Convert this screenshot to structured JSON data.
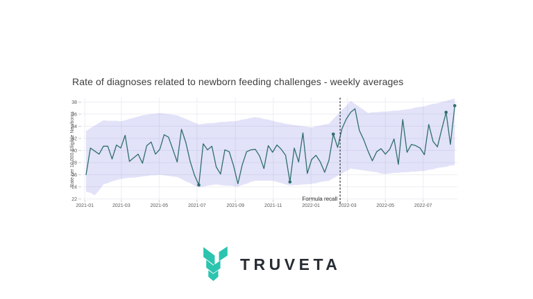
{
  "page": {
    "background_color": "#ffffff"
  },
  "chart": {
    "title": "Rate of diagnoses related to newborn feeding challenges - weekly averages",
    "y_axis_title": "Rate per 10,000 Elligible Newborns",
    "annotation_label": "Formula recall"
  },
  "chart_data": {
    "type": "line",
    "title": "Rate of diagnoses related to newborn feeding challenges - weekly averages",
    "xlabel": "",
    "ylabel": "Rate per 10,000 Elligible Newborns",
    "ylim": [
      21.7,
      38.85
    ],
    "grid": true,
    "legend": "none",
    "x_ticks": [
      "2021-01",
      "2021-03",
      "2021-05",
      "2021-07",
      "2021-09",
      "2021-11",
      "2022-01",
      "2022-03",
      "2022-05",
      "2022-07"
    ],
    "y_ticks": [
      22,
      24,
      26,
      28,
      30,
      32,
      34,
      36,
      38
    ],
    "x": [
      "2021-01-03",
      "2021-01-10",
      "2021-01-17",
      "2021-01-24",
      "2021-01-31",
      "2021-02-07",
      "2021-02-14",
      "2021-02-21",
      "2021-02-28",
      "2021-03-07",
      "2021-03-14",
      "2021-03-21",
      "2021-03-28",
      "2021-04-04",
      "2021-04-11",
      "2021-04-18",
      "2021-04-25",
      "2021-05-02",
      "2021-05-09",
      "2021-05-16",
      "2021-05-23",
      "2021-05-30",
      "2021-06-06",
      "2021-06-13",
      "2021-06-20",
      "2021-06-27",
      "2021-07-04",
      "2021-07-11",
      "2021-07-18",
      "2021-07-25",
      "2021-08-01",
      "2021-08-08",
      "2021-08-15",
      "2021-08-22",
      "2021-08-29",
      "2021-09-05",
      "2021-09-12",
      "2021-09-19",
      "2021-09-26",
      "2021-10-03",
      "2021-10-10",
      "2021-10-17",
      "2021-10-24",
      "2021-10-31",
      "2021-11-07",
      "2021-11-14",
      "2021-11-21",
      "2021-11-28",
      "2021-12-05",
      "2021-12-12",
      "2021-12-19",
      "2021-12-26",
      "2022-01-02",
      "2022-01-09",
      "2022-01-16",
      "2022-01-23",
      "2022-01-30",
      "2022-02-06",
      "2022-02-13",
      "2022-02-20",
      "2022-02-27",
      "2022-03-06",
      "2022-03-13",
      "2022-03-20",
      "2022-03-27",
      "2022-04-03",
      "2022-04-10",
      "2022-04-17",
      "2022-04-24",
      "2022-05-01",
      "2022-05-08",
      "2022-05-15",
      "2022-05-22",
      "2022-05-29",
      "2022-06-05",
      "2022-06-12",
      "2022-06-19",
      "2022-06-26",
      "2022-07-03",
      "2022-07-10",
      "2022-07-17",
      "2022-07-24",
      "2022-07-31",
      "2022-08-07",
      "2022-08-14",
      "2022-08-21"
    ],
    "series": [
      {
        "name": "Weekly average rate",
        "color": "#2e6e6c",
        "values": [
          26.0,
          30.4,
          29.9,
          29.4,
          30.7,
          30.7,
          28.6,
          30.9,
          30.4,
          32.5,
          28.2,
          28.8,
          29.4,
          27.9,
          30.8,
          31.4,
          29.4,
          30.2,
          32.6,
          32.2,
          30.2,
          28.1,
          33.5,
          31.3,
          28.2,
          25.9,
          24.3,
          31.1,
          30.1,
          30.7,
          27.3,
          26.1,
          30.1,
          29.8,
          27.5,
          24.5,
          27.6,
          29.8,
          30.1,
          30.2,
          29.1,
          27.0,
          30.8,
          29.7,
          30.9,
          30.2,
          29.2,
          24.8,
          30.4,
          28.1,
          32.9,
          26.2,
          28.5,
          29.2,
          28.1,
          26.4,
          28.4,
          32.7,
          30.5,
          33.6,
          35.2,
          36.3,
          36.9,
          33.3,
          31.8,
          29.9,
          28.3,
          29.8,
          30.3,
          29.4,
          30.2,
          31.9,
          27.7,
          35.1,
          29.7,
          31.0,
          30.8,
          30.4,
          29.3,
          34.3,
          31.5,
          30.6,
          33.5,
          36.3,
          31.0,
          37.4
        ]
      }
    ],
    "band": {
      "name": "Uncertainty band",
      "fill": "rgba(124,124,226,0.22)",
      "upper": [
        33.2,
        33.7,
        34.1,
        34.6,
        35.0,
        34.9,
        34.9,
        34.9,
        34.8,
        35.0,
        35.2,
        35.4,
        35.6,
        35.8,
        35.9,
        36.0,
        36.1,
        36.2,
        36.1,
        36.0,
        35.9,
        35.8,
        35.5,
        35.2,
        34.9,
        34.6,
        34.3,
        34.4,
        34.5,
        34.5,
        34.6,
        34.7,
        34.7,
        34.8,
        34.8,
        34.9,
        35.1,
        35.2,
        35.4,
        35.5,
        35.4,
        35.2,
        35.1,
        34.9,
        34.7,
        34.6,
        34.4,
        34.3,
        34.2,
        34.1,
        34.0,
        33.9,
        33.8,
        34.0,
        34.1,
        34.3,
        34.4,
        35.2,
        35.9,
        36.7,
        37.4,
        38.2,
        37.7,
        37.2,
        36.7,
        36.2,
        36.3,
        36.3,
        36.4,
        36.4,
        36.5,
        36.6,
        36.6,
        36.7,
        36.8,
        36.9,
        37.1,
        37.2,
        37.3,
        37.5,
        37.7,
        37.8,
        38.0,
        38.2,
        38.4,
        38.6
      ],
      "lower": [
        23.2,
        23.0,
        22.6,
        23.4,
        24.4,
        24.6,
        24.9,
        25.1,
        25.3,
        25.4,
        25.5,
        25.5,
        25.6,
        25.7,
        25.8,
        25.9,
        25.9,
        26.0,
        25.9,
        25.8,
        25.7,
        25.6,
        25.3,
        24.9,
        24.6,
        24.2,
        23.9,
        24.0,
        24.2,
        24.3,
        24.4,
        24.3,
        24.2,
        24.2,
        24.1,
        24.0,
        24.3,
        24.5,
        24.8,
        25.0,
        25.0,
        25.0,
        25.0,
        25.0,
        24.8,
        24.6,
        24.4,
        24.2,
        24.3,
        24.3,
        24.4,
        24.4,
        24.5,
        24.6,
        24.8,
        24.9,
        25.0,
        25.4,
        25.8,
        26.2,
        26.6,
        27.0,
        26.9,
        26.8,
        26.7,
        26.6,
        26.5,
        26.4,
        26.2,
        26.1,
        26.2,
        26.3,
        26.3,
        26.4,
        26.4,
        26.5,
        26.5,
        26.6,
        26.6,
        26.8,
        26.9,
        27.1,
        27.2,
        27.3,
        27.5,
        27.6
      ]
    },
    "markers": {
      "indices": [
        26,
        47,
        57,
        83,
        85
      ],
      "color": "#2e6e6c"
    },
    "annotation": {
      "label": "Formula recall",
      "date": "2022-02-17",
      "line_style": "dashed",
      "line_color": "#3f3f3f"
    }
  },
  "branding": {
    "wordmark": "TRUVETA",
    "logo_icon": "truveta-chevron-leaf",
    "logo_color": "#2bc4af",
    "wordmark_color": "#272c34"
  }
}
